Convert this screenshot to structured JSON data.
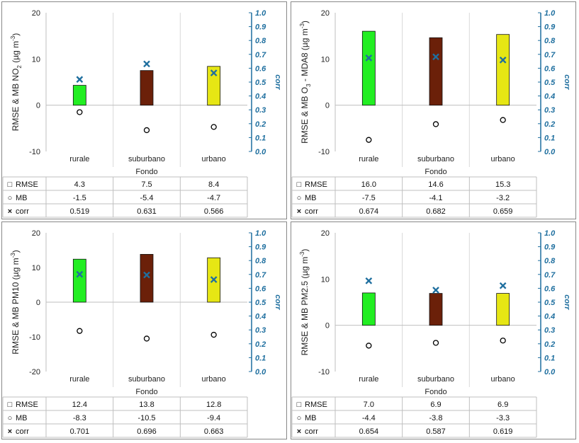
{
  "colors": {
    "rurale": "#22ee22",
    "suburbano": "#6b2009",
    "urbano": "#e6e614",
    "corr": "#1f6f9f",
    "frame": "#888888"
  },
  "chart_data": [
    {
      "type": "bar",
      "categories": [
        "rurale",
        "suburbano",
        "urbano"
      ],
      "xlabel": "Fondo",
      "ylabel_parts": [
        "RMSE & MB NO",
        "2",
        " (µg m",
        "-3",
        ")"
      ],
      "y2label": "corr",
      "ylim": [
        -10,
        20
      ],
      "y_ticks": [
        "20",
        "10",
        "0",
        "-10"
      ],
      "y2lim": [
        0.0,
        1.0
      ],
      "y2_ticks": [
        "1.0",
        "0.9",
        "0.8",
        "0.7",
        "0.6",
        "0.5",
        "0.4",
        "0.3",
        "0.2",
        "0.1",
        "0.0"
      ],
      "series": [
        {
          "name": "RMSE",
          "marker": "□",
          "values": [
            4.3,
            7.5,
            8.4
          ],
          "labels": [
            "4.3",
            "7.5",
            "8.4"
          ]
        },
        {
          "name": "MB",
          "marker": "○",
          "values": [
            -1.5,
            -5.4,
            -4.7
          ],
          "labels": [
            "-1.5",
            "-5.4",
            "-4.7"
          ]
        },
        {
          "name": "corr",
          "marker": "×",
          "values": [
            0.519,
            0.631,
            0.566
          ],
          "labels": [
            "0.519",
            "0.631",
            "0.566"
          ]
        }
      ]
    },
    {
      "type": "bar",
      "categories": [
        "rurale",
        "suburbano",
        "urbano"
      ],
      "xlabel": "Fondo",
      "ylabel_parts": [
        "RMSE & MB O",
        "3",
        " - MDA8 (µg m",
        "-3",
        ")"
      ],
      "y2label": "corr",
      "ylim": [
        -10,
        20
      ],
      "y_ticks": [
        "20",
        "10",
        "0",
        "-10"
      ],
      "y2lim": [
        0.0,
        1.0
      ],
      "y2_ticks": [
        "1.0",
        "0.9",
        "0.8",
        "0.7",
        "0.6",
        "0.5",
        "0.4",
        "0.3",
        "0.2",
        "0.1",
        "0.0"
      ],
      "series": [
        {
          "name": "RMSE",
          "marker": "□",
          "values": [
            16.0,
            14.6,
            15.3
          ],
          "labels": [
            "16.0",
            "14.6",
            "15.3"
          ]
        },
        {
          "name": "MB",
          "marker": "○",
          "values": [
            -7.5,
            -4.1,
            -3.2
          ],
          "labels": [
            "-7.5",
            "-4.1",
            "-3.2"
          ]
        },
        {
          "name": "corr",
          "marker": "×",
          "values": [
            0.674,
            0.682,
            0.659
          ],
          "labels": [
            "0.674",
            "0.682",
            "0.659"
          ]
        }
      ]
    },
    {
      "type": "bar",
      "categories": [
        "rurale",
        "suburbano",
        "urbano"
      ],
      "xlabel": "Fondo",
      "ylabel_parts": [
        "RMSE & MB PM10 (µg m",
        "-3",
        ")"
      ],
      "y2label": "corr",
      "ylim": [
        -20,
        20
      ],
      "y_ticks": [
        "20",
        "10",
        "0",
        "-10",
        "-20"
      ],
      "y2lim": [
        0.0,
        1.0
      ],
      "y2_ticks": [
        "1.0",
        "0.9",
        "0.8",
        "0.7",
        "0.6",
        "0.5",
        "0.4",
        "0.3",
        "0.2",
        "0.1",
        "0.0"
      ],
      "series": [
        {
          "name": "RMSE",
          "marker": "□",
          "values": [
            12.4,
            13.8,
            12.8
          ],
          "labels": [
            "12.4",
            "13.8",
            "12.8"
          ]
        },
        {
          "name": "MB",
          "marker": "○",
          "values": [
            -8.3,
            -10.5,
            -9.4
          ],
          "labels": [
            "-8.3",
            "-10.5",
            "-9.4"
          ]
        },
        {
          "name": "corr",
          "marker": "×",
          "values": [
            0.701,
            0.696,
            0.663
          ],
          "labels": [
            "0.701",
            "0.696",
            "0.663"
          ]
        }
      ]
    },
    {
      "type": "bar",
      "categories": [
        "rurale",
        "suburbano",
        "urbano"
      ],
      "xlabel": "Fondo",
      "ylabel_parts": [
        "RMSE & MB PM2.5 (µg m",
        "-3",
        ")"
      ],
      "y2label": "corr",
      "ylim": [
        -10,
        20
      ],
      "y_ticks": [
        "20",
        "10",
        "0",
        "-10"
      ],
      "y2lim": [
        0.0,
        1.0
      ],
      "y2_ticks": [
        "1.0",
        "0.9",
        "0.8",
        "0.7",
        "0.6",
        "0.5",
        "0.4",
        "0.3",
        "0.2",
        "0.1",
        "0.0"
      ],
      "series": [
        {
          "name": "RMSE",
          "marker": "□",
          "values": [
            7.0,
            6.9,
            6.9
          ],
          "labels": [
            "7.0",
            "6.9",
            "6.9"
          ]
        },
        {
          "name": "MB",
          "marker": "○",
          "values": [
            -4.4,
            -3.8,
            -3.3
          ],
          "labels": [
            "-4.4",
            "-3.8",
            "-3.3"
          ]
        },
        {
          "name": "corr",
          "marker": "×",
          "values": [
            0.654,
            0.587,
            0.619
          ],
          "labels": [
            "0.654",
            "0.587",
            "0.619"
          ]
        }
      ]
    }
  ]
}
